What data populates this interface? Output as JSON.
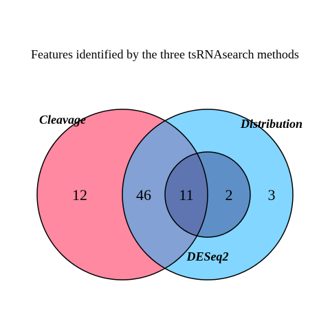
{
  "title": "Features identified by the three tsRNAsearch methods",
  "sets": [
    {
      "name": "Cleavage",
      "color": "#ff4a6e"
    },
    {
      "name": "Distribution",
      "color": "#1eb4ff"
    },
    {
      "name": "DESeq2",
      "color": "#3a4a8f"
    }
  ],
  "regions": {
    "cleavage_only": "12",
    "cleavage_distribution": "46",
    "all_three": "11",
    "distribution_deseq2": "2",
    "distribution_only": "3"
  }
}
